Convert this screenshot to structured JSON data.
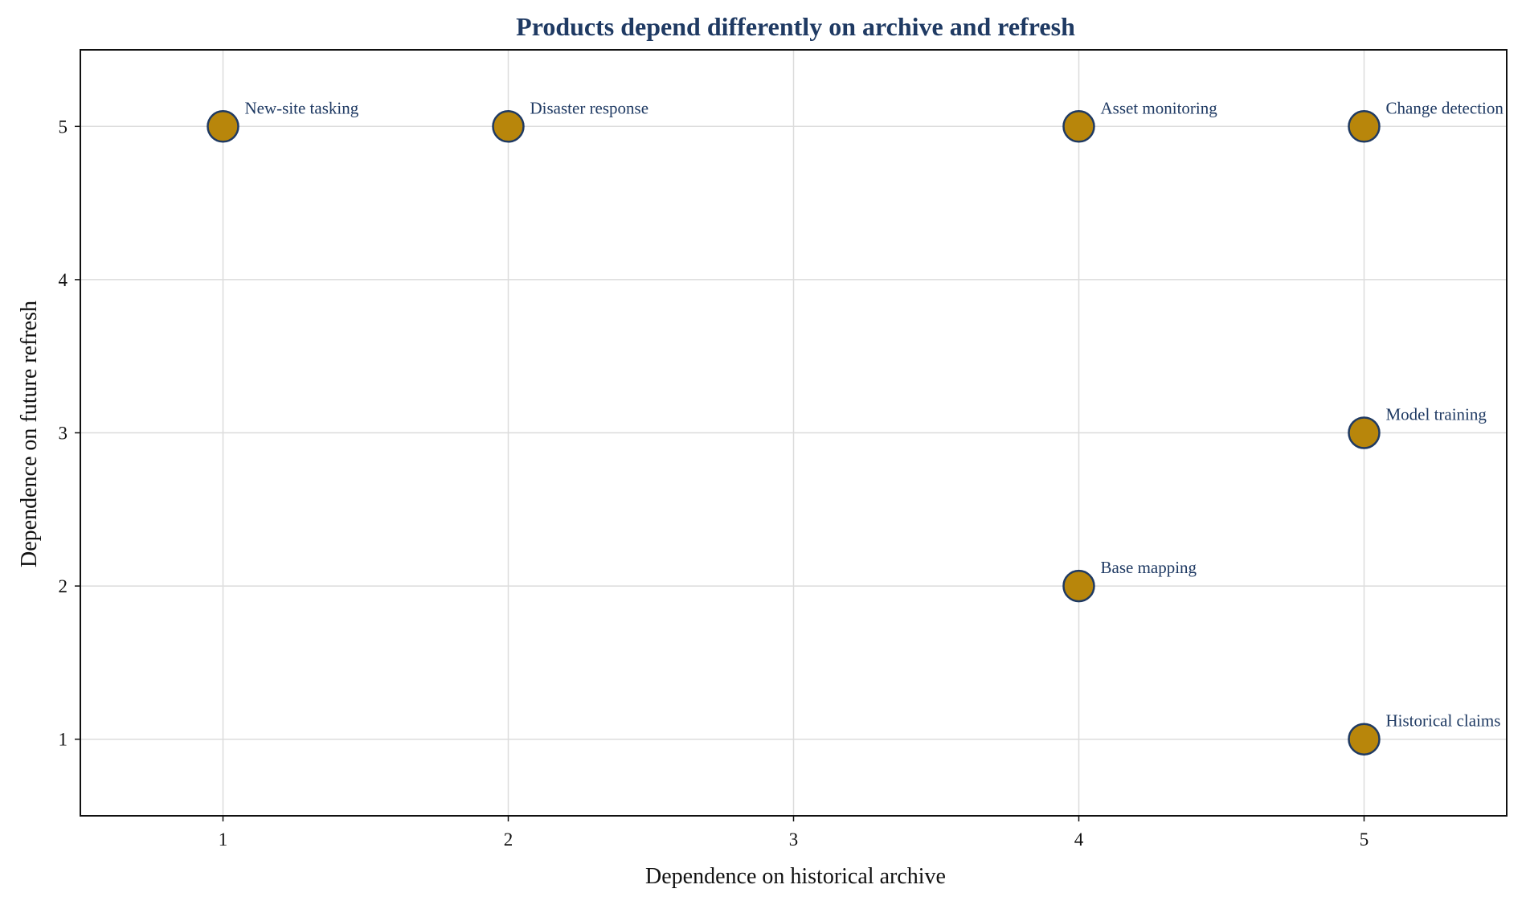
{
  "chart_data": {
    "type": "scatter",
    "title": "Products depend differently on archive and refresh",
    "xlabel": "Dependence on historical archive",
    "ylabel": "Dependence on future refresh",
    "xlim": [
      0.5,
      5.5
    ],
    "ylim": [
      0.5,
      5.5
    ],
    "xticks": [
      1,
      2,
      3,
      4,
      5
    ],
    "yticks": [
      1,
      2,
      3,
      4,
      5
    ],
    "grid": true,
    "points": [
      {
        "label": "New-site tasking",
        "x": 1,
        "y": 5
      },
      {
        "label": "Disaster response",
        "x": 2,
        "y": 5
      },
      {
        "label": "Asset monitoring",
        "x": 4,
        "y": 5
      },
      {
        "label": "Change detection",
        "x": 5,
        "y": 5
      },
      {
        "label": "Model training",
        "x": 5,
        "y": 3
      },
      {
        "label": "Base mapping",
        "x": 4,
        "y": 2
      },
      {
        "label": "Historical claims",
        "x": 5,
        "y": 1
      }
    ]
  },
  "colors": {
    "title": "#1f3a63",
    "marker_fill": "#b8860b",
    "marker_edge": "#1f3a63",
    "point_label": "#1f3a63"
  }
}
